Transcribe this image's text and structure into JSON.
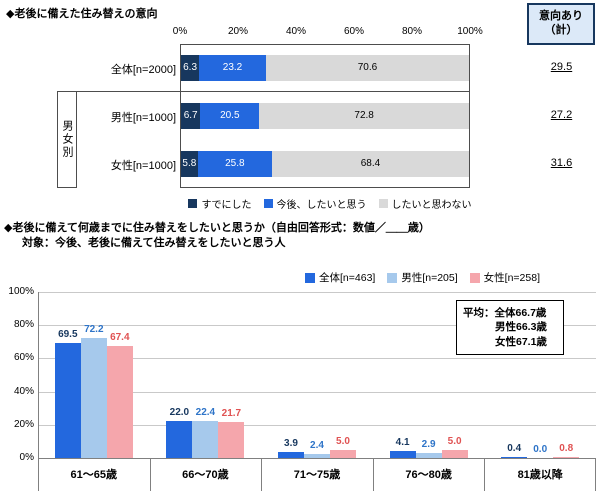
{
  "chart_data": [
    {
      "type": "bar",
      "orientation": "horizontal",
      "stacked": true,
      "title": "◆老後に備えた住み替えの意向",
      "categories": [
        "全体[n=2000]",
        "男性[n=1000]",
        "女性[n=1000]"
      ],
      "series": [
        {
          "name": "すでにした",
          "color": "#17375E",
          "value_color": "#FFFFFF",
          "values": [
            6.3,
            6.7,
            5.8
          ]
        },
        {
          "name": "今後、したいと思う",
          "color": "#2368DE",
          "value_color": "#FFFFFF",
          "values": [
            23.2,
            20.5,
            25.8
          ]
        },
        {
          "name": "したいと思わない",
          "color": "#D9D9D9",
          "value_color": "#000000",
          "values": [
            70.6,
            72.8,
            68.4
          ]
        }
      ],
      "x_ticks": [
        "0%",
        "20%",
        "40%",
        "60%",
        "80%",
        "100%"
      ],
      "xlim": [
        0,
        100
      ],
      "legend_position": "bottom",
      "row_group": {
        "label": "男女別",
        "applies_to": [
          "男性[n=1000]",
          "女性[n=1000]"
        ]
      },
      "right_column": {
        "header": "意向あり\n（計）",
        "values": [
          "29.5",
          "27.2",
          "31.6"
        ]
      }
    },
    {
      "type": "bar",
      "orientation": "vertical",
      "stacked": false,
      "title": "◆老後に備えて何歳までに住み替えをしたいと思うか（自由回答形式：数値／＿＿歳）",
      "subtitle": "対象：今後、老後に備えて住み替えをしたいと思う人",
      "categories": [
        "61～65歳",
        "66～70歳",
        "71～75歳",
        "76～80歳",
        "81歳以降"
      ],
      "series": [
        {
          "name": "全体[n=463]",
          "color": "#2368DE",
          "label_color": "#17375E",
          "values": [
            69.5,
            22.0,
            3.9,
            4.1,
            0.4
          ]
        },
        {
          "name": "男性[n=205]",
          "color": "#A6C9EC",
          "label_color": "#2E74C8",
          "values": [
            72.2,
            22.4,
            2.4,
            2.9,
            0.0
          ]
        },
        {
          "name": "女性[n=258]",
          "color": "#F5A6AC",
          "label_color": "#E05252",
          "values": [
            67.4,
            21.7,
            5.0,
            5.0,
            0.8
          ]
        }
      ],
      "y_ticks": [
        "100%",
        "80%",
        "60%",
        "40%",
        "20%",
        "0%"
      ],
      "ylim": [
        0,
        100
      ],
      "grid": true,
      "legend_position": "top",
      "annotation": {
        "lines": [
          "平均：全体66.7歳",
          "男性66.3歳",
          "女性67.1歳"
        ]
      }
    }
  ]
}
